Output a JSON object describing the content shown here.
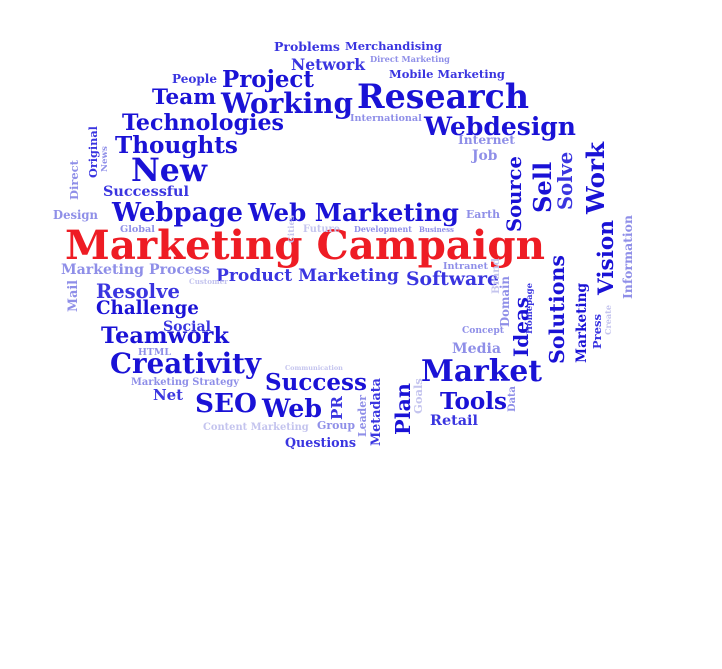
{
  "colors": {
    "dark": "#1a12d6",
    "mid": "#3a35e0",
    "light": "#8f8fe8",
    "faint": "#c4c4ee",
    "red": "#ee1c24"
  },
  "words": [
    {
      "id": "marketing-campaign",
      "text": "Marketing Campaign",
      "tone": "red",
      "vertical": false
    },
    {
      "id": "research",
      "text": "Research",
      "tone": "dark",
      "vertical": false
    },
    {
      "id": "webdesign",
      "text": "Webdesign",
      "tone": "dark",
      "vertical": false
    },
    {
      "id": "project",
      "text": "Project",
      "tone": "dark",
      "vertical": false
    },
    {
      "id": "working",
      "text": "Working",
      "tone": "dark",
      "vertical": false
    },
    {
      "id": "team",
      "text": "Team",
      "tone": "dark",
      "vertical": false
    },
    {
      "id": "technologies",
      "text": "Technologies",
      "tone": "dark",
      "vertical": false
    },
    {
      "id": "thoughts",
      "text": "Thoughts",
      "tone": "dark",
      "vertical": false
    },
    {
      "id": "new",
      "text": "New",
      "tone": "dark",
      "vertical": false
    },
    {
      "id": "webpage",
      "text": "Webpage",
      "tone": "dark",
      "vertical": false
    },
    {
      "id": "web-marketing",
      "text": "Web Marketing",
      "tone": "dark",
      "vertical": false
    },
    {
      "id": "product-marketing",
      "text": "Product Marketing",
      "tone": "mid",
      "vertical": false
    },
    {
      "id": "software",
      "text": "Software",
      "tone": "mid",
      "vertical": false
    },
    {
      "id": "resolve",
      "text": "Resolve",
      "tone": "mid",
      "vertical": false
    },
    {
      "id": "challenge",
      "text": "Challenge",
      "tone": "dark",
      "vertical": false
    },
    {
      "id": "teamwork",
      "text": "Teamwork",
      "tone": "dark",
      "vertical": false
    },
    {
      "id": "creativity",
      "text": "Creativity",
      "tone": "dark",
      "vertical": false
    },
    {
      "id": "success",
      "text": "Success",
      "tone": "dark",
      "vertical": false
    },
    {
      "id": "seo",
      "text": "SEO",
      "tone": "dark",
      "vertical": false
    },
    {
      "id": "web",
      "text": "Web",
      "tone": "dark",
      "vertical": false
    },
    {
      "id": "market",
      "text": "Market",
      "tone": "dark",
      "vertical": false
    },
    {
      "id": "tools",
      "text": "Tools",
      "tone": "dark",
      "vertical": false
    },
    {
      "id": "retail",
      "text": "Retail",
      "tone": "mid",
      "vertical": false
    },
    {
      "id": "media",
      "text": "Media",
      "tone": "light",
      "vertical": false
    },
    {
      "id": "net",
      "text": "Net",
      "tone": "mid",
      "vertical": false
    },
    {
      "id": "questions",
      "text": "Questions",
      "tone": "mid",
      "vertical": false
    },
    {
      "id": "group",
      "text": "Group",
      "tone": "light",
      "vertical": false
    },
    {
      "id": "problems",
      "text": "Problems",
      "tone": "mid",
      "vertical": false
    },
    {
      "id": "merchandising",
      "text": "Merchandising",
      "tone": "mid",
      "vertical": false
    },
    {
      "id": "network",
      "text": "Network",
      "tone": "mid",
      "vertical": false
    },
    {
      "id": "direct-marketing",
      "text": "Direct Marketing",
      "tone": "light",
      "vertical": false
    },
    {
      "id": "mobile-marketing",
      "text": "Mobile Marketing",
      "tone": "mid",
      "vertical": false
    },
    {
      "id": "people",
      "text": "People",
      "tone": "mid",
      "vertical": false
    },
    {
      "id": "international",
      "text": "International",
      "tone": "light",
      "vertical": false
    },
    {
      "id": "internet",
      "text": "Internet",
      "tone": "light",
      "vertical": false
    },
    {
      "id": "job",
      "text": "Job",
      "tone": "light",
      "vertical": false
    },
    {
      "id": "successful",
      "text": "Successful",
      "tone": "mid",
      "vertical": false
    },
    {
      "id": "design",
      "text": "Design",
      "tone": "light",
      "vertical": false
    },
    {
      "id": "global",
      "text": "Global",
      "tone": "light",
      "vertical": false
    },
    {
      "id": "future",
      "text": "Future",
      "tone": "faint",
      "vertical": false
    },
    {
      "id": "development",
      "text": "Development",
      "tone": "light",
      "vertical": false
    },
    {
      "id": "business",
      "text": "Business",
      "tone": "light",
      "vertical": false
    },
    {
      "id": "earth",
      "text": "Earth",
      "tone": "light",
      "vertical": false
    },
    {
      "id": "marketing-process",
      "text": "Marketing Process",
      "tone": "light",
      "vertical": false
    },
    {
      "id": "customer",
      "text": "Customer",
      "tone": "faint",
      "vertical": false
    },
    {
      "id": "intranet",
      "text": "Intranet",
      "tone": "light",
      "vertical": false
    },
    {
      "id": "social",
      "text": "Social",
      "tone": "mid",
      "vertical": false
    },
    {
      "id": "html",
      "text": "HTML",
      "tone": "light",
      "vertical": false
    },
    {
      "id": "marketing-strategy",
      "text": "Marketing Strategy",
      "tone": "light",
      "vertical": false
    },
    {
      "id": "communication",
      "text": "Communication",
      "tone": "faint",
      "vertical": false
    },
    {
      "id": "content-marketing",
      "text": "Content Marketing",
      "tone": "faint",
      "vertical": false
    },
    {
      "id": "concept",
      "text": "Concept",
      "tone": "light",
      "vertical": false
    },
    {
      "id": "original",
      "text": "Original",
      "tone": "mid",
      "vertical": true
    },
    {
      "id": "news",
      "text": "News",
      "tone": "light",
      "vertical": true
    },
    {
      "id": "direct",
      "text": "Direct",
      "tone": "light",
      "vertical": true
    },
    {
      "id": "mail",
      "text": "Mail",
      "tone": "light",
      "vertical": true
    },
    {
      "id": "sell",
      "text": "Sell",
      "tone": "dark",
      "vertical": true
    },
    {
      "id": "source",
      "text": "Source",
      "tone": "dark",
      "vertical": true
    },
    {
      "id": "solve",
      "text": "Solve",
      "tone": "mid",
      "vertical": true
    },
    {
      "id": "work",
      "text": "Work",
      "tone": "dark",
      "vertical": true
    },
    {
      "id": "vision",
      "text": "Vision",
      "tone": "dark",
      "vertical": true
    },
    {
      "id": "information",
      "text": "Information",
      "tone": "light",
      "vertical": true
    },
    {
      "id": "ideas",
      "text": "Ideas",
      "tone": "dark",
      "vertical": true
    },
    {
      "id": "solutions",
      "text": "Solutions",
      "tone": "dark",
      "vertical": true
    },
    {
      "id": "marketing-v",
      "text": "Marketing",
      "tone": "dark",
      "vertical": true
    },
    {
      "id": "press",
      "text": "Press",
      "tone": "mid",
      "vertical": true
    },
    {
      "id": "create",
      "text": "Create",
      "tone": "faint",
      "vertical": true
    },
    {
      "id": "homepage",
      "text": "Homepage",
      "tone": "mid",
      "vertical": true
    },
    {
      "id": "domain",
      "text": "Domain",
      "tone": "light",
      "vertical": true
    },
    {
      "id": "brand",
      "text": "Brand",
      "tone": "faint",
      "vertical": true
    },
    {
      "id": "plan",
      "text": "Plan",
      "tone": "dark",
      "vertical": true
    },
    {
      "id": "pr",
      "text": "PR",
      "tone": "mid",
      "vertical": true
    },
    {
      "id": "metadata",
      "text": "Metadata",
      "tone": "mid",
      "vertical": true
    },
    {
      "id": "leader",
      "text": "Leader",
      "tone": "light",
      "vertical": true
    },
    {
      "id": "data",
      "text": "Data",
      "tone": "light",
      "vertical": true
    },
    {
      "id": "goals",
      "text": "Goals",
      "tone": "faint",
      "vertical": true
    },
    {
      "id": "cities",
      "text": "Cities",
      "tone": "faint",
      "vertical": true
    }
  ]
}
